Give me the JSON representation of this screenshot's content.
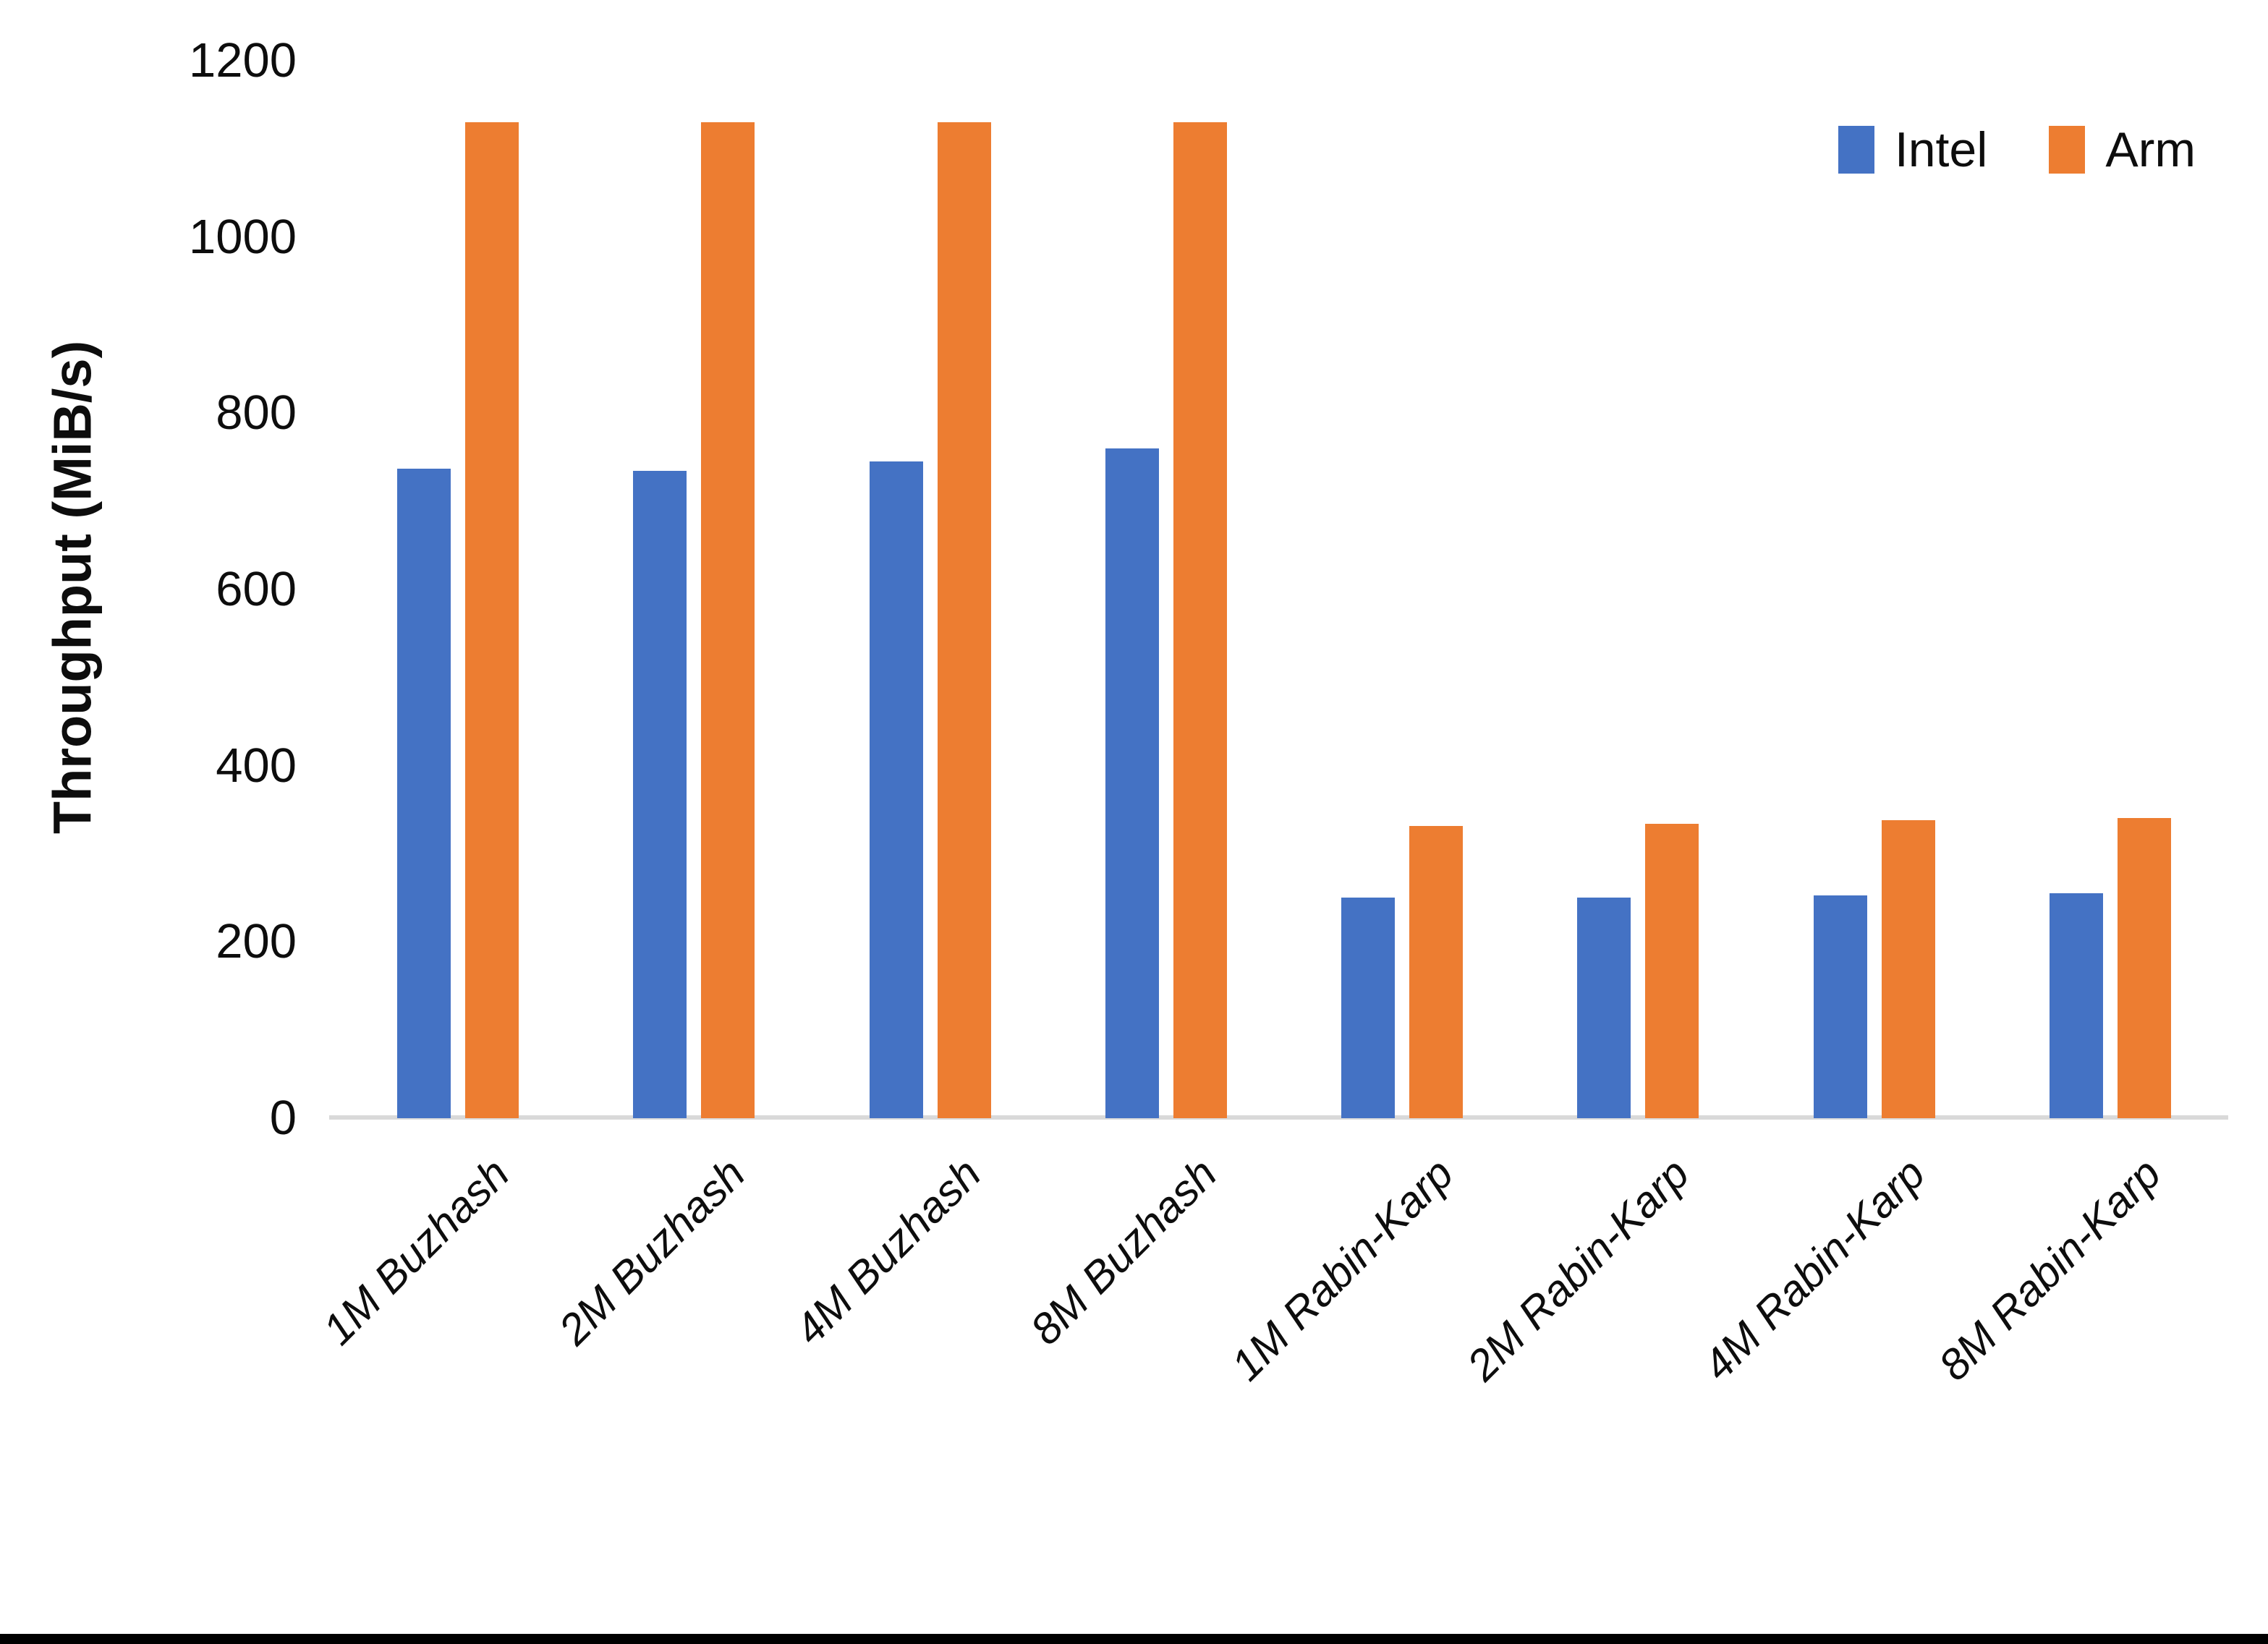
{
  "chart_data": {
    "type": "bar",
    "title": "",
    "xlabel": "",
    "ylabel": "Throughput (MiB/s)",
    "categories": [
      "1M Buzhash",
      "2M Buzhash",
      "4M Buzhash",
      "8M Buzhash",
      "1M Rabin-Karp",
      "2M Rabin-Karp",
      "4M Rabin-Karp",
      "8M Rabin-Karp"
    ],
    "series": [
      {
        "name": "Intel",
        "color": "#4472C4",
        "values": [
          737,
          735,
          745,
          760,
          250,
          250,
          253,
          255
        ]
      },
      {
        "name": "Arm",
        "color": "#ED7D31",
        "values": [
          1130,
          1130,
          1130,
          1130,
          332,
          334,
          338,
          341
        ]
      }
    ],
    "ylim": [
      0,
      1200
    ],
    "yticks": [
      0,
      200,
      400,
      600,
      800,
      1000,
      1200
    ],
    "grid": false,
    "legend_position": "top-right",
    "axis_line_color": "#D9D9D9",
    "category_label_rotation_deg": -45
  }
}
